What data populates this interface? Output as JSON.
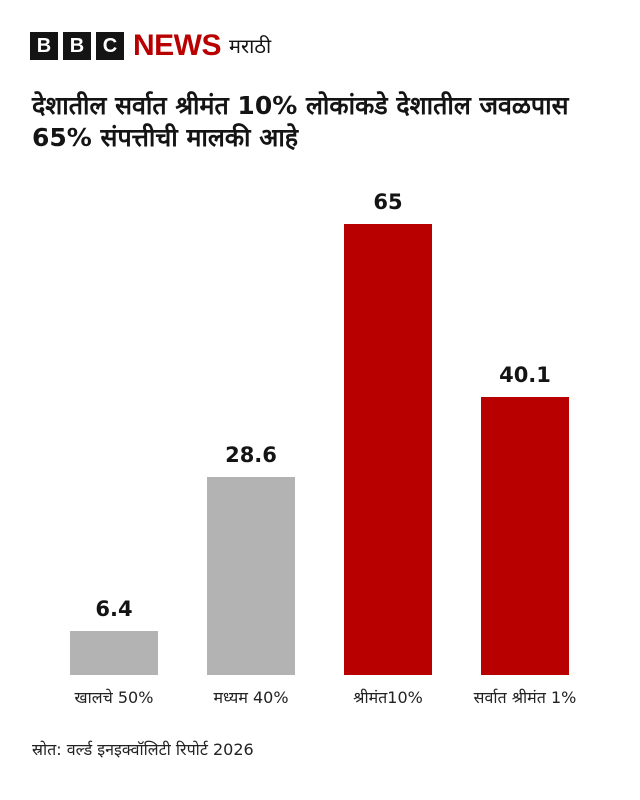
{
  "header": {
    "brand_letters": [
      "B",
      "B",
      "C"
    ],
    "brand_news": "NEWS",
    "brand_language": "मराठी",
    "brand_color": "#b80000"
  },
  "title": "देशातील सर्वात श्रीमंत 10% लोकांकडे देशातील जवळपास 65% संपत्तीची मालकी आहे",
  "source": "स्रोत: वर्ल्ड इनइक्वॉलिटी रिपोर्ट 2026",
  "chart_data": {
    "type": "bar",
    "title": "देशातील सर्वात श्रीमंत 10% लोकांकडे देशातील जवळपास 65% संपत्तीची मालकी आहे",
    "categories": [
      "खालचे 50%",
      "मध्यम 40%",
      "श्रीमंत10%",
      "सर्वात श्रीमंत 1%"
    ],
    "values": [
      6.4,
      28.6,
      65,
      40.1
    ],
    "value_labels": [
      "6.4",
      "28.6",
      "65",
      "40.1"
    ],
    "colors": [
      "#b3b3b3",
      "#b3b3b3",
      "#b80000",
      "#b80000"
    ],
    "xlabel": "",
    "ylabel": "",
    "ylim": [
      0,
      65
    ],
    "grid": false,
    "legend": "none",
    "source": "स्रोत: वर्ल्ड इनइक्वॉलिटी रिपोर्ट 2026"
  }
}
